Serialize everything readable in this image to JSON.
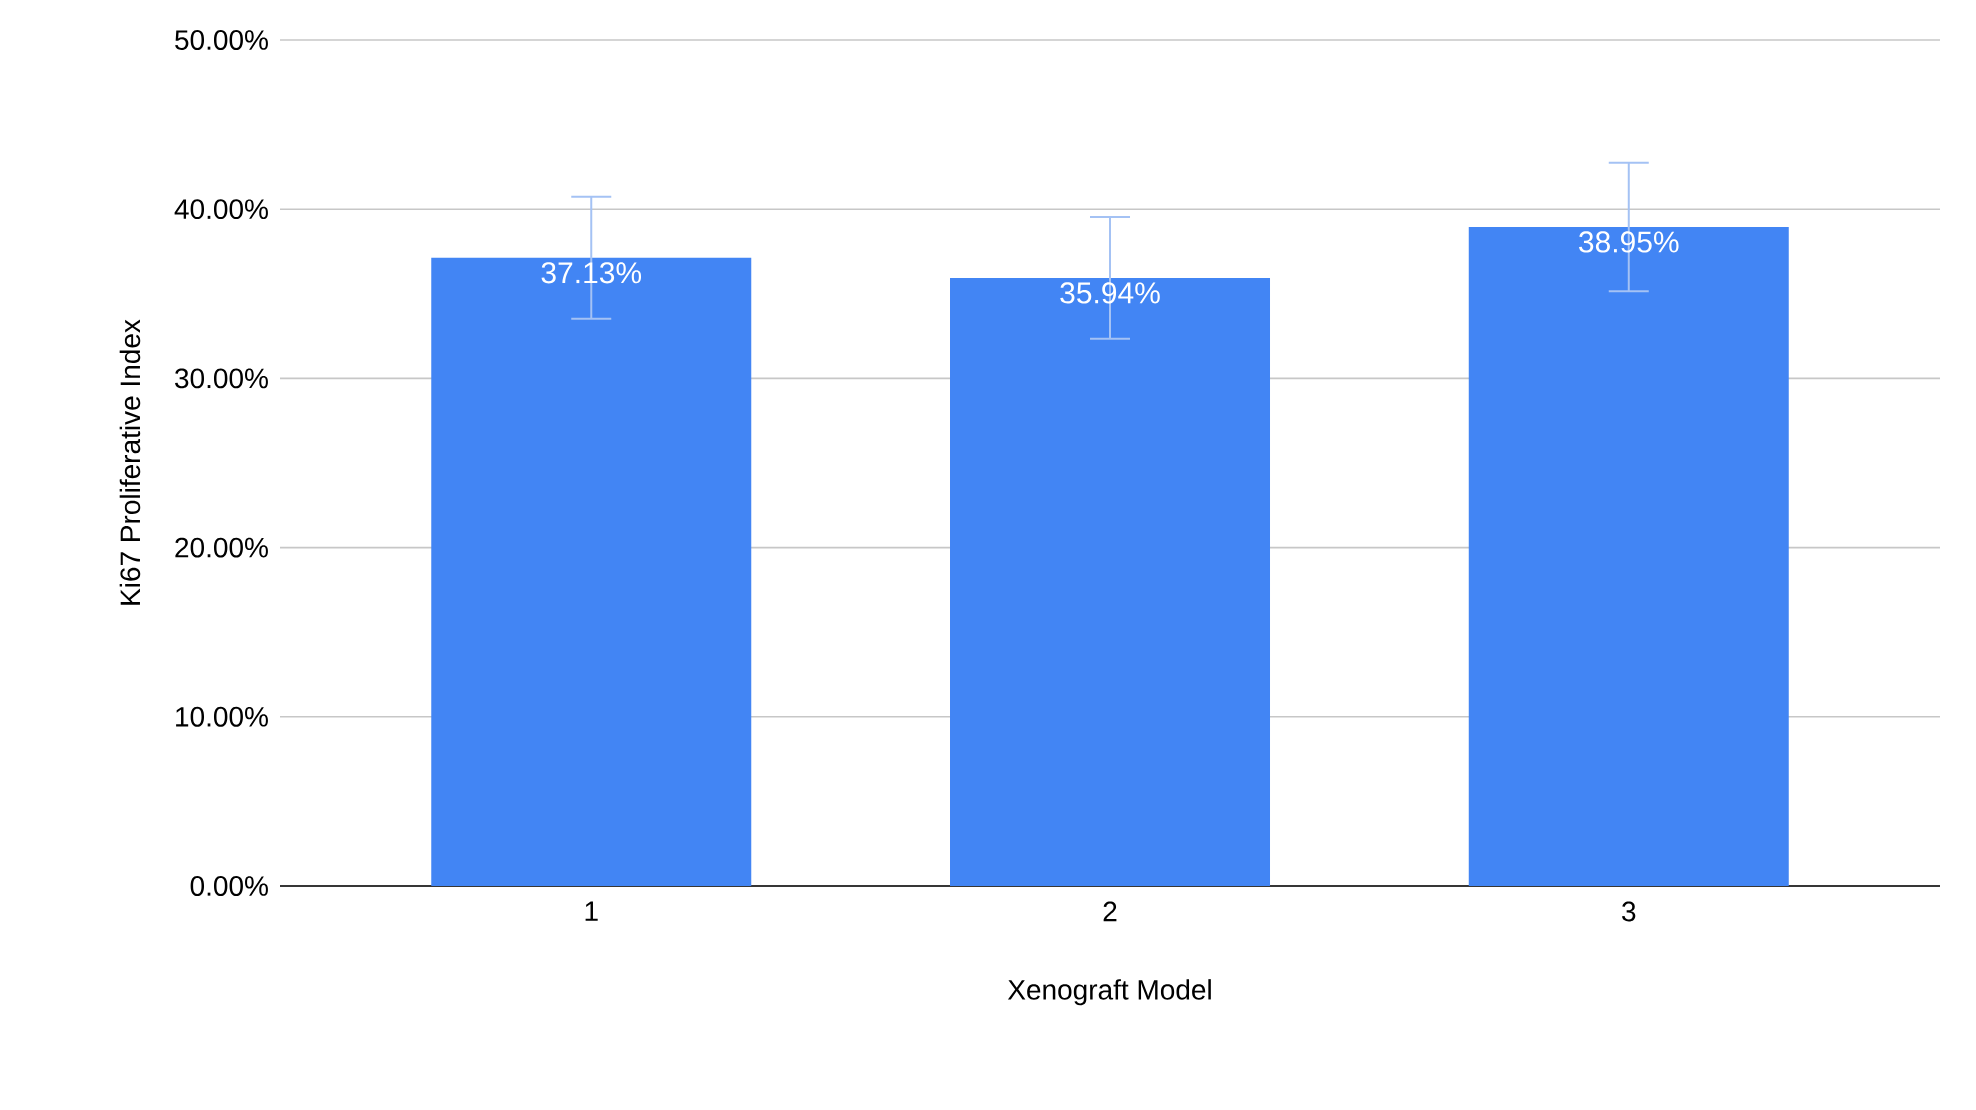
{
  "chart_data": {
    "type": "bar",
    "xlabel": "Xenograft Model",
    "ylabel": "Ki67 Proliferative Index",
    "categories": [
      "1",
      "2",
      "3"
    ],
    "values": [
      37.13,
      35.94,
      38.95
    ],
    "errors": [
      3.6,
      3.6,
      3.8
    ],
    "value_labels": [
      "37.13%",
      "35.94%",
      "38.95%"
    ],
    "color": "#4285f4",
    "ylim": [
      0,
      50
    ],
    "yticks": [
      {
        "value": 0,
        "label": "0.00%"
      },
      {
        "value": 10,
        "label": "10.00%"
      },
      {
        "value": 20,
        "label": "20.00%"
      },
      {
        "value": 30,
        "label": "30.00%"
      },
      {
        "value": 40,
        "label": "40.00%"
      },
      {
        "value": 50,
        "label": "50.00%"
      }
    ],
    "grid": "y"
  }
}
